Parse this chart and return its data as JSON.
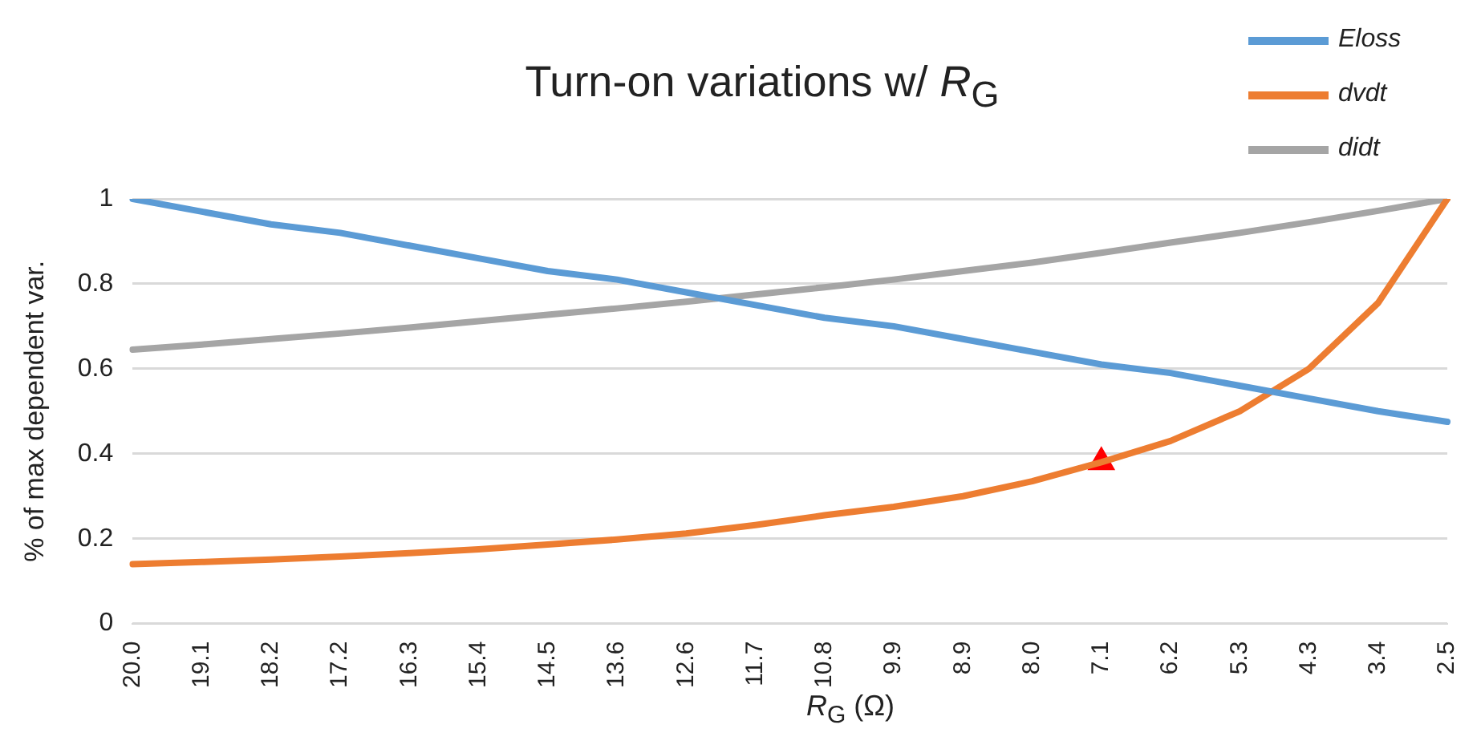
{
  "chart_data": {
    "type": "line",
    "title": "Turn-on variations w/ R$_{G}$",
    "xlabel": "R$_{G}$ (Ω)",
    "ylabel": "% of max dependent var.",
    "categories": [
      "20.0",
      "19.1",
      "18.2",
      "17.2",
      "16.3",
      "15.4",
      "14.5",
      "13.6",
      "12.6",
      "11.7",
      "10.8",
      "9.9",
      "8.9",
      "8.0",
      "7.1",
      "6.2",
      "5.3",
      "4.3",
      "3.4",
      "2.5"
    ],
    "series": [
      {
        "name": "Eloss",
        "color": "#5b9bd5",
        "values": [
          1,
          0.97,
          0.94,
          0.92,
          0.89,
          0.86,
          0.83,
          0.81,
          0.78,
          0.75,
          0.72,
          0.7,
          0.67,
          0.64,
          0.61,
          0.59,
          0.56,
          0.53,
          0.5,
          0.475
        ]
      },
      {
        "name": "dvdt",
        "color": "#ed7d31",
        "values": [
          0.14,
          0.145,
          0.151,
          0.158,
          0.166,
          0.175,
          0.186,
          0.198,
          0.212,
          0.232,
          0.255,
          0.275,
          0.3,
          0.335,
          0.38,
          0.43,
          0.5,
          0.6,
          0.755,
          1
        ]
      },
      {
        "name": "didt",
        "color": "#a5a5a5",
        "values": [
          0.645,
          0.657,
          0.67,
          0.683,
          0.697,
          0.712,
          0.727,
          0.742,
          0.758,
          0.775,
          0.792,
          0.81,
          0.83,
          0.85,
          0.873,
          0.897,
          0.92,
          0.945,
          0.972,
          1
        ]
      },
      {
        "type": "scatter",
        "color": "#ff0000",
        "marker": "triangle",
        "x": [
          "7.1"
        ],
        "values": [
          0.38
        ]
      }
    ],
    "ylim": [
      0,
      1
    ],
    "yticks": [
      0,
      0.2,
      0.4,
      0.6,
      0.8,
      1
    ],
    "grid": "y",
    "legend": "top right",
    "marker": "none",
    "line_style": "solid"
  }
}
